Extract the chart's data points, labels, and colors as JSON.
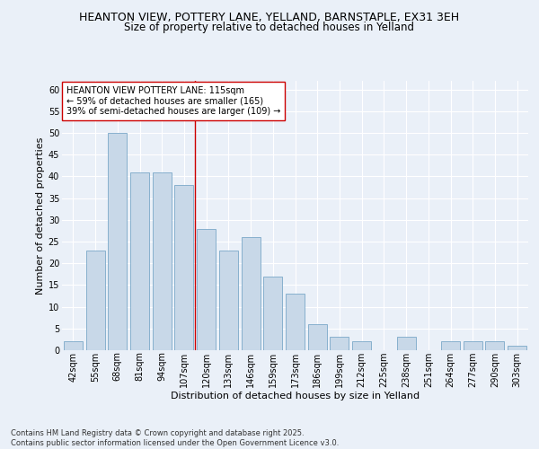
{
  "title_line1": "HEANTON VIEW, POTTERY LANE, YELLAND, BARNSTAPLE, EX31 3EH",
  "title_line2": "Size of property relative to detached houses in Yelland",
  "xlabel": "Distribution of detached houses by size in Yelland",
  "ylabel": "Number of detached properties",
  "categories": [
    "42sqm",
    "55sqm",
    "68sqm",
    "81sqm",
    "94sqm",
    "107sqm",
    "120sqm",
    "133sqm",
    "146sqm",
    "159sqm",
    "173sqm",
    "186sqm",
    "199sqm",
    "212sqm",
    "225sqm",
    "238sqm",
    "251sqm",
    "264sqm",
    "277sqm",
    "290sqm",
    "303sqm"
  ],
  "values": [
    2,
    23,
    50,
    41,
    41,
    38,
    28,
    23,
    26,
    17,
    13,
    6,
    3,
    2,
    0,
    3,
    0,
    2,
    2,
    2,
    1
  ],
  "bar_color": "#c8d8e8",
  "bar_edge_color": "#7aa8c8",
  "annotation_line1": "HEANTON VIEW POTTERY LANE: 115sqm",
  "annotation_line2": "← 59% of detached houses are smaller (165)",
  "annotation_line3": "39% of semi-detached houses are larger (109) →",
  "property_line_x": 5.5,
  "ylim": [
    0,
    62
  ],
  "yticks": [
    0,
    5,
    10,
    15,
    20,
    25,
    30,
    35,
    40,
    45,
    50,
    55,
    60
  ],
  "background_color": "#eaf0f8",
  "plot_bg_color": "#eaf0f8",
  "grid_color": "#ffffff",
  "footer": "Contains HM Land Registry data © Crown copyright and database right 2025.\nContains public sector information licensed under the Open Government Licence v3.0.",
  "annotation_box_color": "#ffffff",
  "annotation_box_edge": "#cc0000",
  "red_line_color": "#cc0000",
  "title_fontsize": 9,
  "subtitle_fontsize": 8.5,
  "axis_label_fontsize": 8,
  "tick_fontsize": 7,
  "annotation_fontsize": 7,
  "footer_fontsize": 6
}
